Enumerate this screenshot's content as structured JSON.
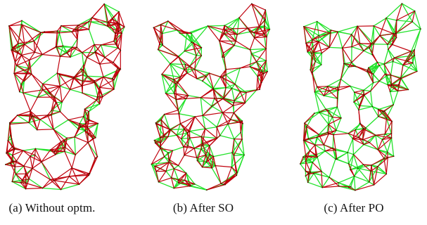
{
  "figure": {
    "panels": [
      {
        "id": "a",
        "caption": "(a)  Without optm.",
        "red_weight": 0.62
      },
      {
        "id": "b",
        "caption": "(b)  After SO",
        "red_weight": 0.5
      },
      {
        "id": "c",
        "caption": "(c)  After PO",
        "red_weight": 0.4
      }
    ],
    "colors": {
      "edge_red": "#c0000c",
      "edge_green": "#22e22a",
      "edge_dark": "#3a1a00"
    }
  }
}
